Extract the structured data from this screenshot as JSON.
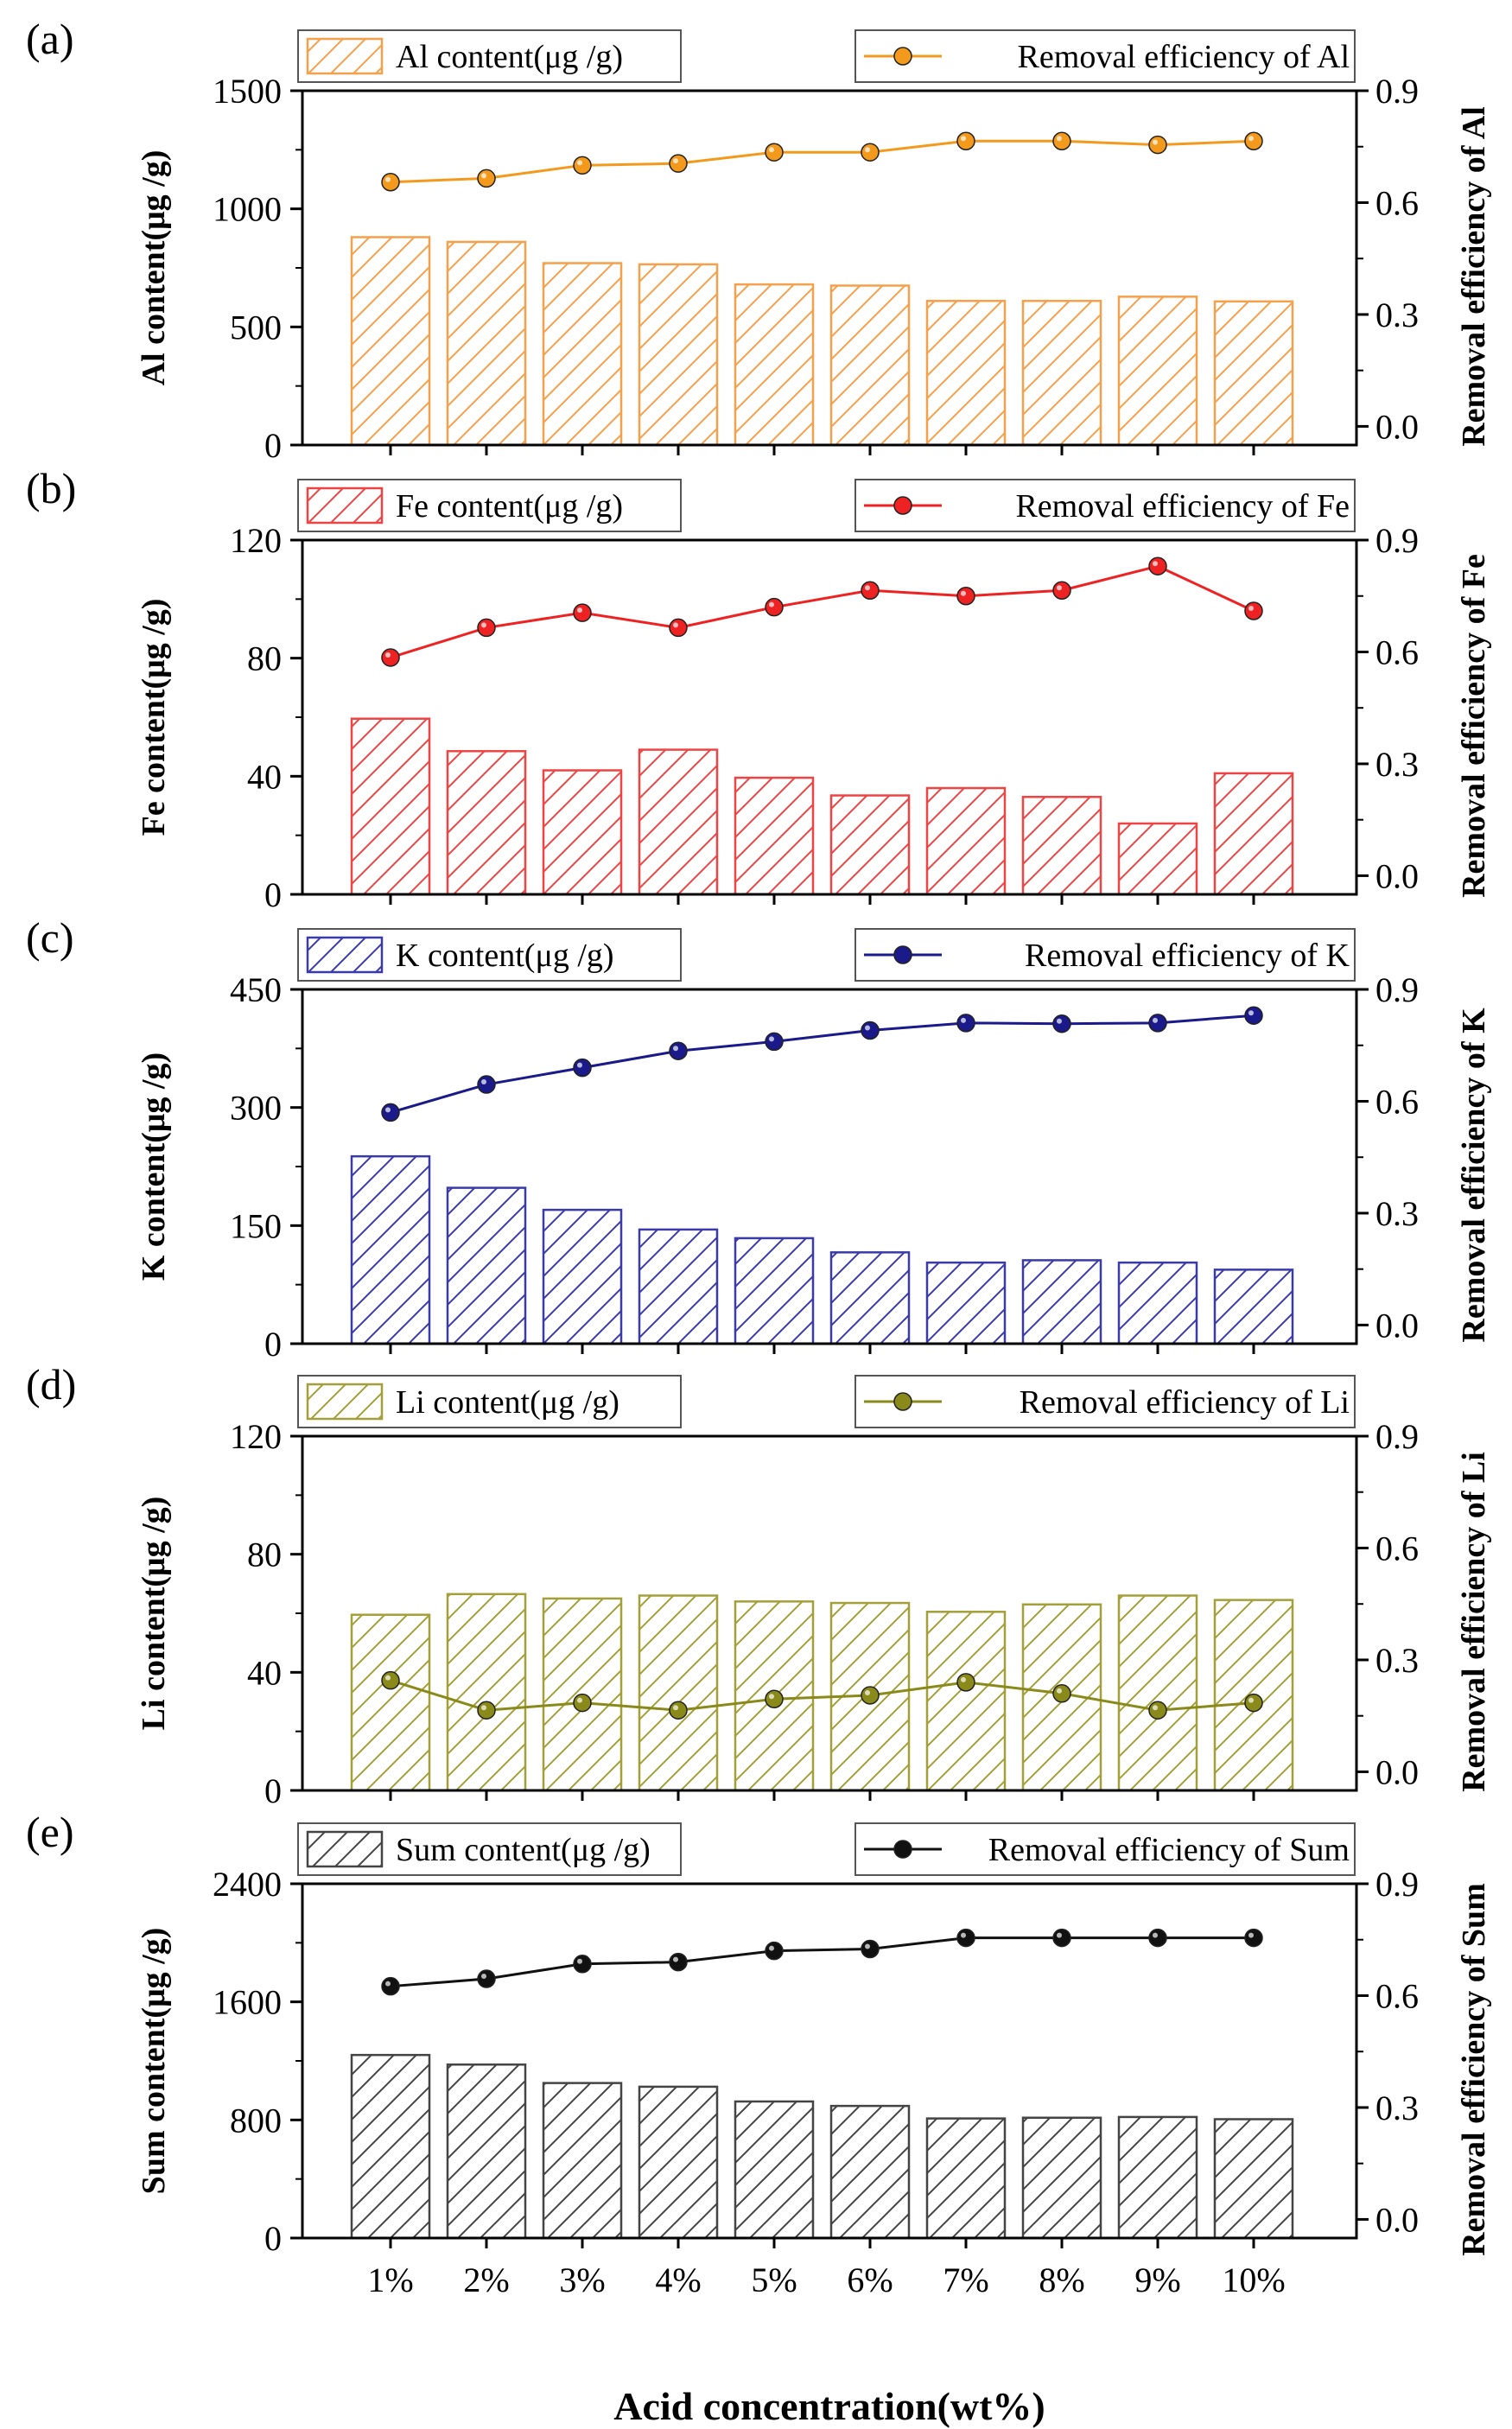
{
  "figure": {
    "x_axis_title": "Acid concentration(wt%)",
    "categories": [
      "1%",
      "2%",
      "3%",
      "4%",
      "5%",
      "6%",
      "7%",
      "8%",
      "9%",
      "10%"
    ]
  },
  "chart_data": [
    {
      "type": "bar",
      "panel_label": "(a)",
      "color": "#f5a04a",
      "line_color": "#f39a1c",
      "categories": [
        "1%",
        "2%",
        "3%",
        "4%",
        "5%",
        "6%",
        "7%",
        "8%",
        "9%",
        "10%"
      ],
      "series": [
        {
          "name": "Al content(μg /g)",
          "kind": "bar",
          "axis": "left",
          "values": [
            880,
            860,
            770,
            765,
            680,
            675,
            610,
            610,
            628,
            608
          ]
        },
        {
          "name": "Removal efficiency of Al",
          "kind": "line",
          "axis": "right",
          "values": [
            0.655,
            0.665,
            0.7,
            0.705,
            0.735,
            0.735,
            0.765,
            0.765,
            0.755,
            0.765
          ]
        }
      ],
      "ylabel": "Al content(μg /g)",
      "ylabel_right": "Removal efficiency of Al",
      "ylim": [
        0,
        1500
      ],
      "yticks": [
        0,
        500,
        1000,
        1500
      ],
      "ylim_right": [
        -0.05,
        0.9
      ],
      "yticks_right": [
        0.0,
        0.3,
        0.6,
        0.9
      ]
    },
    {
      "type": "bar",
      "panel_label": "(b)",
      "color": "#ee4444",
      "line_color": "#ee2222",
      "categories": [
        "1%",
        "2%",
        "3%",
        "4%",
        "5%",
        "6%",
        "7%",
        "8%",
        "9%",
        "10%"
      ],
      "series": [
        {
          "name": "Fe content(μg /g)",
          "kind": "bar",
          "axis": "left",
          "values": [
            59.5,
            48.5,
            42,
            49,
            39.5,
            33.5,
            36,
            33,
            24,
            41
          ]
        },
        {
          "name": "Removal efficiency of Fe",
          "kind": "line",
          "axis": "right",
          "values": [
            0.585,
            0.665,
            0.705,
            0.665,
            0.72,
            0.765,
            0.75,
            0.765,
            0.83,
            0.71
          ]
        }
      ],
      "ylabel": "Fe content(μg /g)",
      "ylabel_right": "Removal efficiency of Fe",
      "ylim": [
        0,
        120
      ],
      "yticks": [
        0,
        40,
        80,
        120
      ],
      "ylim_right": [
        -0.05,
        0.9
      ],
      "yticks_right": [
        0.0,
        0.3,
        0.6,
        0.9
      ]
    },
    {
      "type": "bar",
      "panel_label": "(c)",
      "color": "#3a3aa8",
      "line_color": "#1a1a8a",
      "categories": [
        "1%",
        "2%",
        "3%",
        "4%",
        "5%",
        "6%",
        "7%",
        "8%",
        "9%",
        "10%"
      ],
      "series": [
        {
          "name": "K content(μg /g)",
          "kind": "bar",
          "axis": "left",
          "values": [
            238,
            198,
            170,
            145,
            134,
            116,
            103,
            106,
            103,
            94
          ]
        },
        {
          "name": "Removal efficiency of K",
          "kind": "line",
          "axis": "right",
          "values": [
            0.57,
            0.645,
            0.69,
            0.735,
            0.76,
            0.79,
            0.81,
            0.808,
            0.81,
            0.83
          ]
        }
      ],
      "ylabel": "K content(μg /g)",
      "ylabel_right": "Removal efficiency of K",
      "ylim": [
        0,
        450
      ],
      "yticks": [
        0,
        150,
        300,
        450
      ],
      "ylim_right": [
        -0.05,
        0.9
      ],
      "yticks_right": [
        0.0,
        0.3,
        0.6,
        0.9
      ]
    },
    {
      "type": "bar",
      "panel_label": "(d)",
      "color": "#a3a03a",
      "line_color": "#8a8a1a",
      "categories": [
        "1%",
        "2%",
        "3%",
        "4%",
        "5%",
        "6%",
        "7%",
        "8%",
        "9%",
        "10%"
      ],
      "series": [
        {
          "name": "Li content(μg /g)",
          "kind": "bar",
          "axis": "left",
          "values": [
            59.5,
            66.5,
            65,
            66,
            64,
            63.5,
            60.5,
            63,
            66,
            64.5
          ]
        },
        {
          "name": "Removal efficiency of Li",
          "kind": "line",
          "axis": "right",
          "values": [
            0.245,
            0.165,
            0.185,
            0.165,
            0.195,
            0.205,
            0.24,
            0.21,
            0.165,
            0.185
          ]
        }
      ],
      "ylabel": "Li content(μg /g)",
      "ylabel_right": "Removal efficiency of Li",
      "ylim": [
        0,
        120
      ],
      "yticks": [
        0,
        40,
        80,
        120
      ],
      "ylim_right": [
        -0.05,
        0.9
      ],
      "yticks_right": [
        0.0,
        0.3,
        0.6,
        0.9
      ]
    },
    {
      "type": "bar",
      "panel_label": "(e)",
      "color": "#444444",
      "line_color": "#111111",
      "categories": [
        "1%",
        "2%",
        "3%",
        "4%",
        "5%",
        "6%",
        "7%",
        "8%",
        "9%",
        "10%"
      ],
      "series": [
        {
          "name": "Sum content(μg /g)",
          "kind": "bar",
          "axis": "left",
          "values": [
            1240,
            1175,
            1050,
            1025,
            925,
            895,
            810,
            815,
            820,
            805
          ]
        },
        {
          "name": "Removal efficiency of Sum",
          "kind": "line",
          "axis": "right",
          "values": [
            0.625,
            0.645,
            0.685,
            0.69,
            0.72,
            0.725,
            0.755,
            0.755,
            0.755,
            0.755
          ]
        }
      ],
      "ylabel": "Sum content(μg /g)",
      "ylabel_right": "Removal efficiency of Sum",
      "ylim": [
        0,
        2400
      ],
      "yticks": [
        0,
        800,
        1600,
        2400
      ],
      "ylim_right": [
        -0.05,
        0.9
      ],
      "yticks_right": [
        0.0,
        0.3,
        0.6,
        0.9
      ]
    }
  ]
}
